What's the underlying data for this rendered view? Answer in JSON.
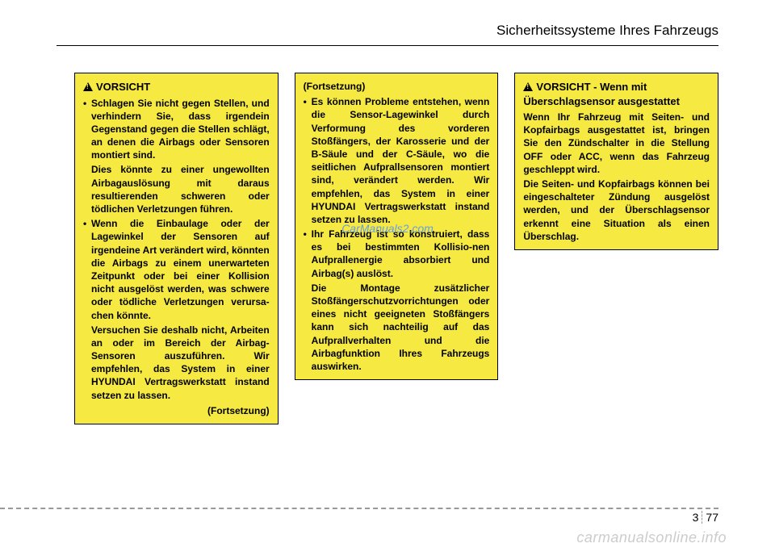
{
  "header": {
    "title": "Sicherheitssysteme Ihres Fahrzeugs"
  },
  "watermark": {
    "center": "CarManuals2.com",
    "bottom": "carmanualsonline.info"
  },
  "col1": {
    "title": "VORSICHT",
    "b1": "Schlagen Sie nicht gegen Stellen, und verhindern Sie, dass irgendein Gegenstand gegen die Stellen schlägt, an denen die Airbags oder Sensoren montiert sind.",
    "b1_sub": "Dies könnte zu einer ungewollten Airbagauslösung mit daraus resultierenden schweren oder tödlichen Verletzungen führen.",
    "b2": "Wenn die Einbaulage oder der Lagewinkel der Sensoren auf irgendeine Art verändert wird, könnten die Airbags zu einem unerwarteten Zeitpunkt oder bei einer Kollision nicht ausgelöst werden, was schwere oder tödliche Verletzungen verursa-chen könnte.",
    "b2_sub": "Versuchen Sie deshalb nicht, Arbeiten an oder im Bereich der Airbag-Sensoren auszuführen. Wir empfehlen, das System in einer HYUNDAI Vertragswerkstatt instand setzen zu lassen.",
    "cont": "(Fortsetzung)"
  },
  "col2": {
    "cont_top": "(Fortsetzung)",
    "b1": "Es können Probleme entstehen, wenn die Sensor-Lagewinkel durch Verformung des vorderen Stoßfängers, der Karosserie und der B-Säule und der C-Säule, wo die seitlichen Aufprallsensoren montiert sind, verändert werden. Wir empfehlen, das System in einer HYUNDAI Vertragswerkstatt instand setzen zu lassen.",
    "b2": "Ihr Fahrzeug ist so konstruiert, dass es bei bestimmten Kollisio-nen Aufprallenergie absorbiert und Airbag(s) auslöst.",
    "b2_sub": "Die Montage zusätzlicher Stoßfängerschutzvorrichtungen oder eines nicht geeigneten Stoßfängers kann sich nachteilig auf das Aufprallverhalten und die Airbagfunktion Ihres Fahrzeugs auswirken."
  },
  "col3": {
    "title": "VORSICHT",
    "subtitle": "- Wenn mit Überschlagsensor ausgestattet",
    "p1": "Wenn Ihr Fahrzeug mit Seiten- und Kopfairbags ausgestattet ist, bringen Sie den Zündschalter in die Stellung OFF oder ACC, wenn das Fahrzeug geschleppt wird.",
    "p2": "Die Seiten- und Kopfairbags können bei eingeschalteter Zündung ausgelöst werden, und der Überschlagsensor erkennt eine Situation als einen Überschlag."
  },
  "pagenum": {
    "section": "3",
    "page": "77"
  },
  "style": {
    "box_bg": "#f5e942",
    "page_bg": "#ffffff"
  }
}
